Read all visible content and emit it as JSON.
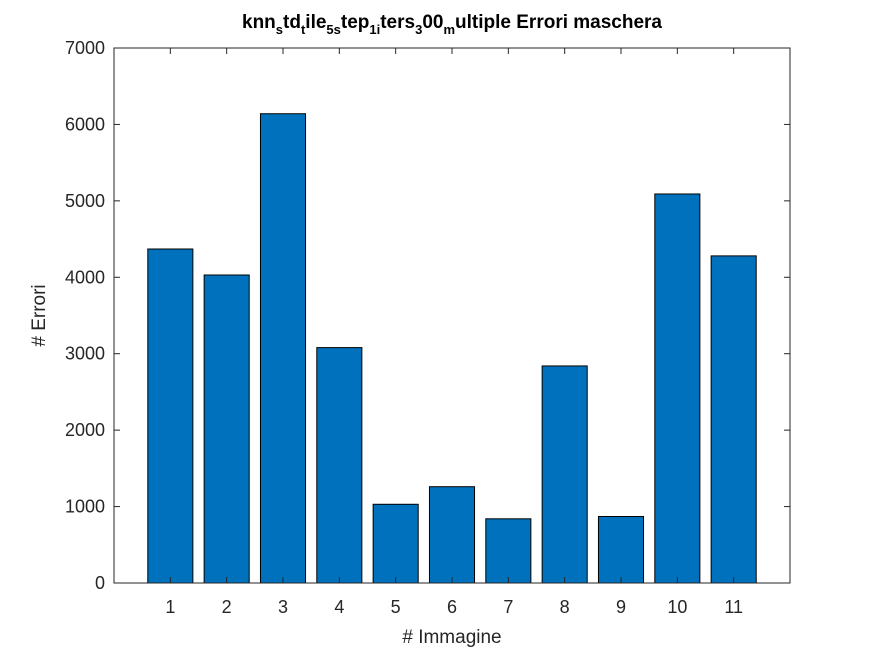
{
  "chart_data": {
    "type": "bar",
    "title": {
      "segments": [
        {
          "text": "knn",
          "sub": false
        },
        {
          "text": "s",
          "sub": true
        },
        {
          "text": "td",
          "sub": false
        },
        {
          "text": "t",
          "sub": true
        },
        {
          "text": "ile",
          "sub": false
        },
        {
          "text": "5s",
          "sub": true
        },
        {
          "text": "tep",
          "sub": false
        },
        {
          "text": "1i",
          "sub": true
        },
        {
          "text": "ters",
          "sub": false
        },
        {
          "text": "3",
          "sub": true
        },
        {
          "text": "00",
          "sub": false
        },
        {
          "text": "m",
          "sub": true
        },
        {
          "text": "ultiple Errori maschera",
          "sub": false
        }
      ]
    },
    "xlabel": "# Immagine",
    "ylabel": "# Errori",
    "categories": [
      "1",
      "2",
      "3",
      "4",
      "5",
      "6",
      "7",
      "8",
      "9",
      "10",
      "11"
    ],
    "values": [
      4370,
      4030,
      6140,
      3080,
      1030,
      1260,
      840,
      2840,
      870,
      5090,
      4280
    ],
    "xlim": [
      0,
      12
    ],
    "ylim": [
      0,
      7000
    ],
    "yticks": [
      0,
      1000,
      2000,
      3000,
      4000,
      5000,
      6000,
      7000
    ],
    "bar_color": "#0072BD",
    "grid": false,
    "legend": "none"
  }
}
